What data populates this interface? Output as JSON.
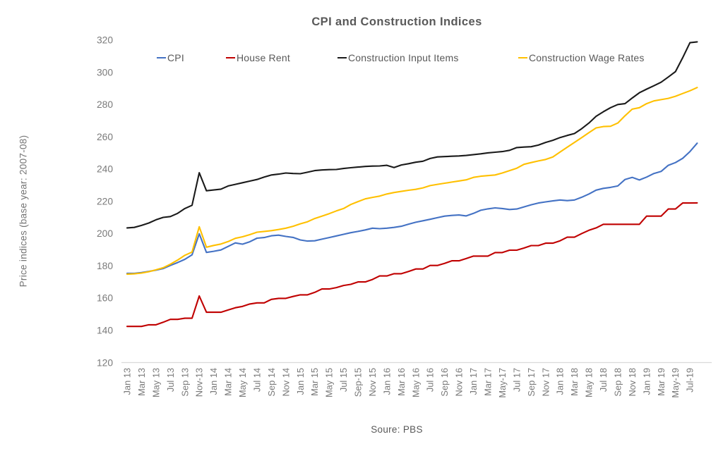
{
  "chart_data": {
    "type": "line",
    "title": "CPI and Construction Indices",
    "ylabel": "Price indices (base year: 2007-08)",
    "source": "Soure: PBS",
    "legend_position": "top",
    "grid": false,
    "y_axis": {
      "min": 120,
      "max": 320,
      "step": 20,
      "ticks": [
        320,
        300,
        280,
        260,
        240,
        220,
        200,
        180,
        160,
        140,
        120
      ]
    },
    "x_axis": {
      "unit": "month",
      "start": "Jan 2013",
      "end": "Aug 2019",
      "tick_every_n_months": 2,
      "tick_labels": [
        "Jan 13",
        "Mar 13",
        "May 13",
        "Jul 13",
        "Sep 13",
        "Nov-13",
        "Jan 14",
        "Mar 14",
        "May 14",
        "Jul 14",
        "Sep 14",
        "Nov 14",
        "Jan 15",
        "Mar 15",
        "May 15",
        "Jul 15",
        "Sep-15",
        "Nov 15",
        "Jan 16",
        "Mar 16",
        "May 16",
        "Jul 16",
        "Sep 16",
        "Nov 16",
        "Jan 17",
        "Mar 17",
        "May-17",
        "Jul 17",
        "Sep 17",
        "Nov 17",
        "Jan 18",
        "Mar 18",
        "May 18",
        "Jul 18",
        "Sep 18",
        "Nov 18",
        "Jan 19",
        "Mar 19",
        "May-19",
        "Jul-19"
      ]
    },
    "series": [
      {
        "name": "CPI",
        "color": "#4472C4",
        "values": [
          175.3,
          175.3,
          175.8,
          176.5,
          177.3,
          178.3,
          180.2,
          182,
          184,
          186.8,
          199.8,
          188.3,
          189,
          189.8,
          192,
          194.2,
          193.4,
          194.9,
          197.1,
          197.5,
          198.6,
          199,
          198.2,
          197.6,
          196,
          195.3,
          195.5,
          196.5,
          197.5,
          198.5,
          199.5,
          200.5,
          201.3,
          202.2,
          203.3,
          203,
          203.3,
          203.8,
          204.5,
          205.8,
          207,
          207.9,
          208.8,
          209.8,
          210.8,
          211.2,
          211.5,
          210.9,
          212.5,
          214.4,
          215.3,
          215.9,
          215.5,
          214.9,
          215.2,
          216.5,
          217.8,
          218.9,
          219.6,
          220.2,
          220.8,
          220.4,
          220.8,
          222.5,
          224.5,
          226.9,
          228,
          228.6,
          229.5,
          233.5,
          234.8,
          233.2,
          235,
          237.2,
          238.5,
          242.3,
          244,
          246.6,
          250.8,
          256
        ]
      },
      {
        "name": "House Rent",
        "color": "#C00000",
        "values": [
          142.4,
          142.4,
          142.4,
          143.4,
          143.4,
          145,
          146.8,
          146.8,
          147.5,
          147.5,
          161.3,
          151.2,
          151.2,
          151.2,
          152.6,
          154,
          154.8,
          156.3,
          157,
          157,
          159.2,
          159.8,
          159.8,
          161,
          162,
          162,
          163.5,
          165.6,
          165.6,
          166.5,
          167.8,
          168.5,
          170,
          170,
          171.5,
          173.7,
          173.7,
          175.1,
          175.1,
          176.5,
          178,
          178,
          180.2,
          180.2,
          181.5,
          183.1,
          183.1,
          184.5,
          186,
          186,
          186,
          188.2,
          188.2,
          189.7,
          189.7,
          191,
          192.5,
          192.5,
          194,
          194,
          195.5,
          197.7,
          197.7,
          200,
          202,
          203.5,
          205.7,
          205.7,
          205.7,
          205.7,
          205.7,
          205.7,
          210.8,
          210.8,
          210.8,
          215.2,
          215.2,
          218.9,
          218.9,
          219
        ]
      },
      {
        "name": "Construction Input Items",
        "color": "#1A1A1A",
        "values": [
          203.5,
          203.8,
          205,
          206.5,
          208.5,
          210,
          210.5,
          212.5,
          215.5,
          217.5,
          237.7,
          226.5,
          227,
          227.5,
          229.5,
          230.5,
          231.5,
          232.5,
          233.5,
          235,
          236.3,
          236.8,
          237.5,
          237.2,
          237.1,
          238,
          239,
          239.4,
          239.6,
          239.7,
          240.3,
          240.8,
          241.2,
          241.6,
          241.8,
          241.9,
          242.3,
          240.9,
          242.5,
          243.3,
          244.2,
          244.8,
          246.5,
          247.5,
          247.7,
          247.9,
          248.1,
          248.4,
          248.9,
          249.4,
          250,
          250.4,
          250.8,
          251.6,
          253.3,
          253.6,
          253.8,
          254.8,
          256.5,
          257.8,
          259.5,
          260.8,
          262,
          265,
          268.5,
          272.7,
          275.5,
          278,
          280,
          280.5,
          284,
          287.3,
          289.5,
          291.6,
          293.8,
          297,
          300.4,
          309,
          318.3,
          318.8
        ]
      },
      {
        "name": "Construction Wage Rates",
        "color": "#FFC000",
        "values": [
          174.8,
          175,
          175.5,
          176.3,
          177.5,
          178.8,
          181,
          183.5,
          186.5,
          188.5,
          204.2,
          191.5,
          192.6,
          193.5,
          195,
          197,
          198,
          199.3,
          200.8,
          201.3,
          201.8,
          202.5,
          203.3,
          204.5,
          206,
          207.3,
          209.3,
          210.8,
          212.3,
          214,
          215.5,
          218,
          219.8,
          221.5,
          222.4,
          223.2,
          224.5,
          225.4,
          226.1,
          226.8,
          227.4,
          228.3,
          229.7,
          230.5,
          231.2,
          231.9,
          232.6,
          233.3,
          234.8,
          235.5,
          235.9,
          236.3,
          237.5,
          239,
          240.5,
          242.9,
          244,
          245,
          245.9,
          247.5,
          250.5,
          253.5,
          256.5,
          259.5,
          262.5,
          265.5,
          266.3,
          266.5,
          268.5,
          273,
          277.1,
          278,
          280.5,
          282.2,
          283,
          283.8,
          285.1,
          286.8,
          288.5,
          290.5
        ]
      }
    ],
    "colors": {
      "axis_line": "#D9D9D9",
      "tick_text": "#7A7A7A",
      "title_text": "#595959"
    }
  }
}
